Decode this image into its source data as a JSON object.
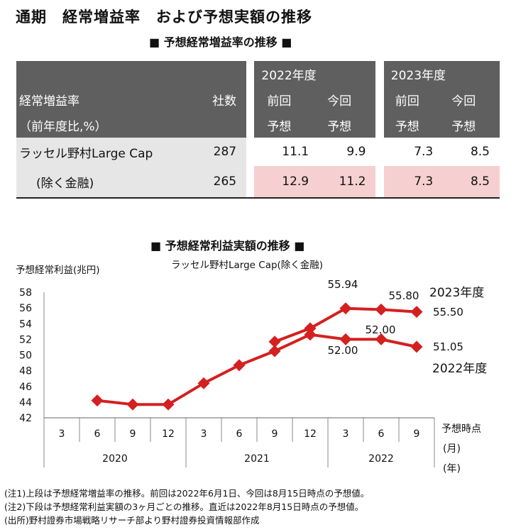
{
  "title": "通期　経常増益率　および予想実額の推移",
  "table": {
    "title": "■ 予想経常増益率の推移 ■",
    "header": {
      "label_line1": "経常増益率",
      "label_line2": "（前年度比,%）",
      "count": "社数",
      "fy2022": "2022年度",
      "fy2023": "2023年度",
      "prev_line1": "前回",
      "prev_line2": "予想",
      "curr_line1": "今回",
      "curr_line2": "予想"
    },
    "rows": [
      {
        "name": "ラッセル野村Large Cap",
        "count": "287",
        "fy2022_prev": "11.1",
        "fy2022_curr": "9.9",
        "fy2023_prev": "7.3",
        "fy2023_curr": "8.5"
      },
      {
        "name": "(除く金融)",
        "count": "265",
        "fy2022_prev": "12.9",
        "fy2022_curr": "11.2",
        "fy2023_prev": "7.3",
        "fy2023_curr": "8.5"
      }
    ],
    "highlight_color": "#f6d0d0",
    "header_color": "#5f5f5f"
  },
  "chart": {
    "title": "■ 予想経常利益実額の推移 ■"
  },
  "chart_data": {
    "type": "line",
    "ylabel": "予想経常利益(兆円)",
    "subtitle": "ラッセル野村Large Cap(除く金融)",
    "ylim": [
      42,
      58
    ],
    "yticks": [
      "42",
      "44",
      "46",
      "48",
      "50",
      "52",
      "54",
      "56",
      "58"
    ],
    "x": [
      "3",
      "6",
      "9",
      "12",
      "3",
      "6",
      "9",
      "12",
      "3",
      "6",
      "9"
    ],
    "year_groups": [
      {
        "label": "2020",
        "count": 4
      },
      {
        "label": "2021",
        "count": 4
      },
      {
        "label": "2022",
        "count": 3
      }
    ],
    "x_unit": "(月)",
    "year_unit": "(年)",
    "x_axis_title": "予想時点",
    "color": "#d42020",
    "series": [
      {
        "name": "2022年度",
        "values": [
          null,
          44.2,
          43.7,
          43.7,
          46.4,
          48.7,
          50.5,
          52.6,
          52.0,
          52.0,
          51.05
        ]
      },
      {
        "name": "2023年度",
        "values": [
          null,
          null,
          null,
          null,
          null,
          null,
          51.7,
          53.4,
          55.94,
          55.8,
          55.5
        ]
      }
    ],
    "annotations": {
      "2023年度": [
        "55.94",
        "55.80",
        "55.50"
      ],
      "2022年度": [
        "52.00",
        "52.00",
        "51.05"
      ]
    }
  },
  "notes": [
    "(注1)上段は予想経常増益率の推移。前回は2022年6月1日、今回は8月15日時点の予想値。",
    "(注2)下段は予想経常利益実額の3ヶ月ごとの推移。直近は2022年8月15日時点の予想値。",
    "(出所)野村證券市場戦略リサーチ部より野村證券投資情報部作成"
  ]
}
